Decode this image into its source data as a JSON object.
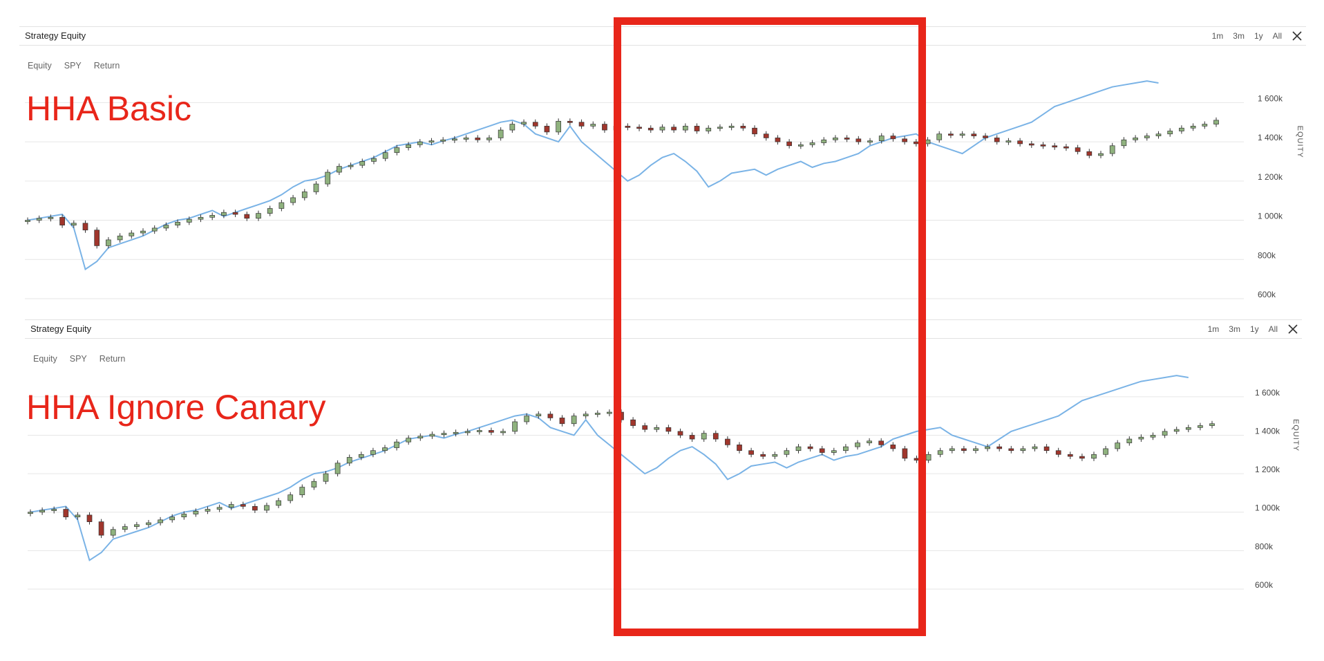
{
  "panels": [
    {
      "title": "Strategy Equity",
      "ranges": [
        "1m",
        "3m",
        "1y",
        "All"
      ],
      "tabs": [
        "Equity",
        "SPY",
        "Return"
      ],
      "annotation": "HHA Basic"
    },
    {
      "title": "Strategy Equity",
      "ranges": [
        "1m",
        "3m",
        "1y",
        "All"
      ],
      "tabs": [
        "Equity",
        "SPY",
        "Return"
      ],
      "annotation": "HHA Ignore Canary"
    }
  ],
  "colors": {
    "annotation": "#e8261a",
    "up_candle": "#8fb27e",
    "down_candle": "#a0362c",
    "spy_line": "#7ab3e6",
    "grid": "#e6e6e6"
  },
  "chart_data": [
    {
      "type": "line",
      "title": "Strategy Equity",
      "ylabel": "EQUITY",
      "yticks": [
        "600k",
        "800k",
        "1 000k",
        "1 200k",
        "1 400k",
        "1 600k"
      ],
      "ylim": [
        600,
        1700
      ],
      "grid": true,
      "series": [
        {
          "name": "Equity",
          "kind": "candlestick",
          "values": [
            1000,
            1010,
            1015,
            975,
            985,
            950,
            870,
            900,
            920,
            935,
            945,
            960,
            975,
            990,
            1005,
            1015,
            1025,
            1040,
            1030,
            1010,
            1035,
            1060,
            1090,
            1115,
            1145,
            1185,
            1245,
            1275,
            1280,
            1300,
            1315,
            1345,
            1370,
            1385,
            1400,
            1405,
            1410,
            1415,
            1420,
            1410,
            1420,
            1460,
            1490,
            1500,
            1480,
            1450,
            1505,
            1500,
            1480,
            1490,
            1460,
            1480,
            1475,
            1470,
            1460,
            1475,
            1460,
            1480,
            1455,
            1470,
            1475,
            1480,
            1470,
            1440,
            1420,
            1400,
            1380,
            1385,
            1395,
            1410,
            1420,
            1415,
            1400,
            1405,
            1430,
            1415,
            1400,
            1390,
            1410,
            1440,
            1435,
            1440,
            1430,
            1420,
            1400,
            1405,
            1390,
            1385,
            1380,
            1375,
            1370,
            1350,
            1330,
            1340,
            1380,
            1410,
            1420,
            1430,
            1440,
            1455,
            1470,
            1480,
            1490,
            1510
          ]
        },
        {
          "name": "SPY",
          "kind": "line",
          "values": [
            1000,
            1010,
            1020,
            1030,
            960,
            750,
            790,
            860,
            880,
            900,
            920,
            950,
            980,
            1000,
            1010,
            1030,
            1050,
            1020,
            1040,
            1060,
            1080,
            1100,
            1130,
            1170,
            1200,
            1210,
            1230,
            1260,
            1280,
            1300,
            1320,
            1350,
            1380,
            1390,
            1400,
            1385,
            1405,
            1420,
            1440,
            1460,
            1480,
            1500,
            1510,
            1490,
            1440,
            1420,
            1400,
            1480,
            1400,
            1350,
            1300,
            1250,
            1200,
            1230,
            1280,
            1320,
            1340,
            1300,
            1250,
            1170,
            1200,
            1240,
            1250,
            1260,
            1230,
            1260,
            1280,
            1300,
            1270,
            1290,
            1300,
            1320,
            1340,
            1380,
            1400,
            1420,
            1430,
            1440,
            1400,
            1380,
            1360,
            1340,
            1380,
            1420,
            1440,
            1460,
            1480,
            1500,
            1540,
            1580,
            1600,
            1620,
            1640,
            1660,
            1680,
            1690,
            1700,
            1710,
            1700
          ]
        }
      ]
    },
    {
      "type": "line",
      "title": "Strategy Equity",
      "ylabel": "EQUITY",
      "yticks": [
        "600k",
        "800k",
        "1 000k",
        "1 200k",
        "1 400k",
        "1 600k"
      ],
      "ylim": [
        600,
        1700
      ],
      "grid": true,
      "series": [
        {
          "name": "Equity",
          "kind": "candlestick",
          "values": [
            1000,
            1010,
            1015,
            975,
            985,
            950,
            880,
            910,
            925,
            935,
            945,
            960,
            975,
            990,
            1005,
            1015,
            1025,
            1040,
            1030,
            1010,
            1035,
            1060,
            1090,
            1130,
            1160,
            1200,
            1255,
            1285,
            1300,
            1320,
            1335,
            1365,
            1385,
            1395,
            1405,
            1410,
            1415,
            1420,
            1425,
            1415,
            1420,
            1470,
            1500,
            1510,
            1490,
            1460,
            1500,
            1510,
            1515,
            1520,
            1480,
            1450,
            1430,
            1440,
            1420,
            1400,
            1380,
            1410,
            1380,
            1350,
            1320,
            1300,
            1290,
            1300,
            1320,
            1340,
            1330,
            1310,
            1320,
            1340,
            1360,
            1370,
            1350,
            1330,
            1280,
            1270,
            1300,
            1320,
            1330,
            1320,
            1330,
            1340,
            1330,
            1320,
            1330,
            1340,
            1320,
            1300,
            1290,
            1280,
            1300,
            1330,
            1360,
            1380,
            1390,
            1400,
            1420,
            1430,
            1440,
            1450,
            1460
          ]
        },
        {
          "name": "SPY",
          "kind": "line",
          "values": [
            1000,
            1010,
            1020,
            1030,
            960,
            750,
            790,
            860,
            880,
            900,
            920,
            950,
            980,
            1000,
            1010,
            1030,
            1050,
            1020,
            1040,
            1060,
            1080,
            1100,
            1130,
            1170,
            1200,
            1210,
            1230,
            1260,
            1280,
            1300,
            1320,
            1350,
            1380,
            1390,
            1400,
            1385,
            1405,
            1420,
            1440,
            1460,
            1480,
            1500,
            1510,
            1490,
            1440,
            1420,
            1400,
            1480,
            1400,
            1350,
            1300,
            1250,
            1200,
            1230,
            1280,
            1320,
            1340,
            1300,
            1250,
            1170,
            1200,
            1240,
            1250,
            1260,
            1230,
            1260,
            1280,
            1300,
            1270,
            1290,
            1300,
            1320,
            1340,
            1380,
            1400,
            1420,
            1430,
            1440,
            1400,
            1380,
            1360,
            1340,
            1380,
            1420,
            1440,
            1460,
            1480,
            1500,
            1540,
            1580,
            1600,
            1620,
            1640,
            1660,
            1680,
            1690,
            1700,
            1710,
            1700
          ]
        }
      ]
    }
  ]
}
